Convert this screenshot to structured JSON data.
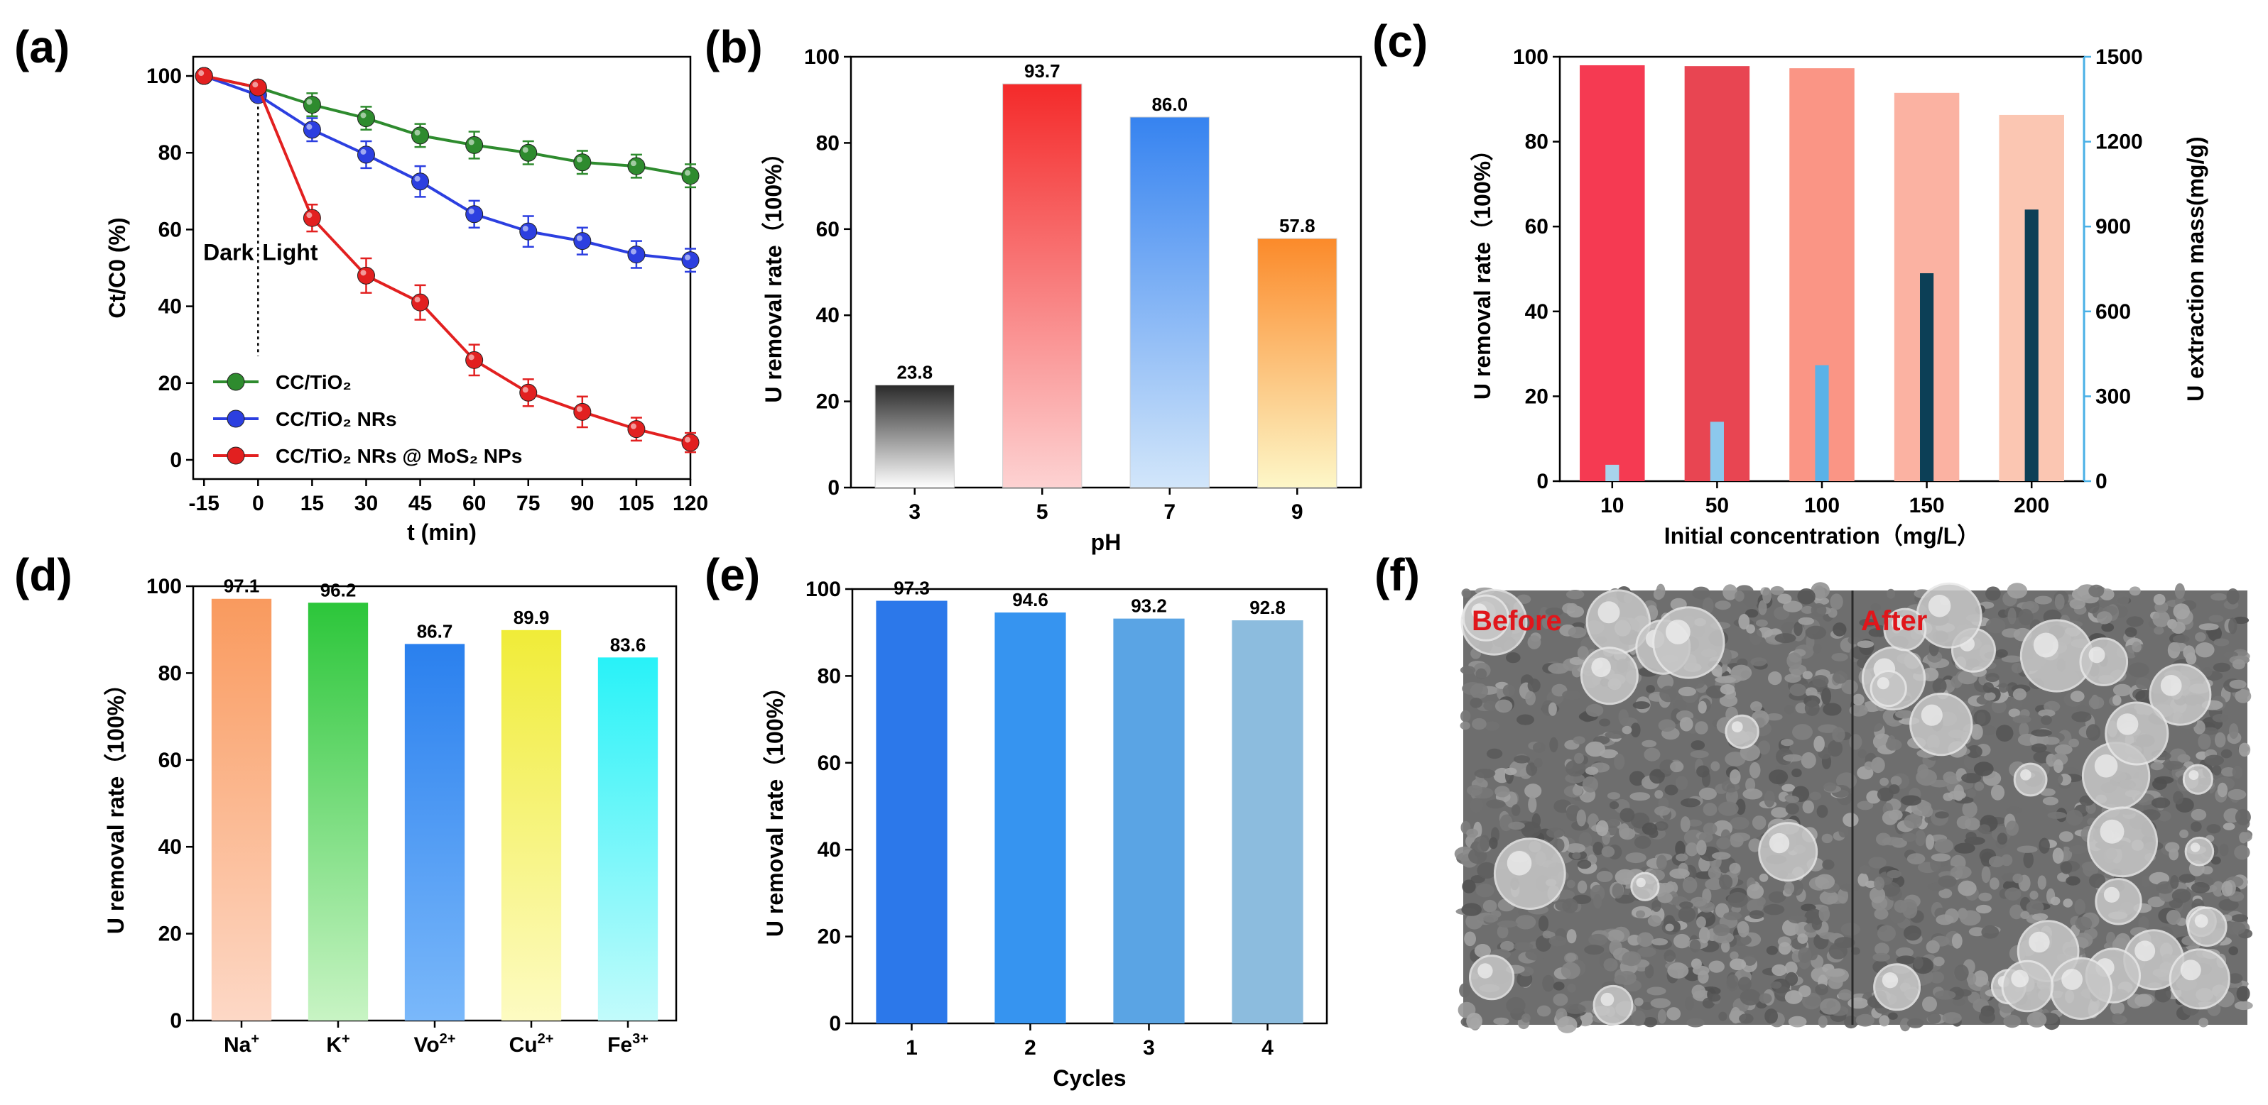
{
  "panel_labels": [
    "(a)",
    "(b)",
    "(c)",
    "(d)",
    "(e)",
    "(f)"
  ],
  "chart_data": [
    {
      "panel": "a",
      "type": "line",
      "xlabel": "t (min)",
      "ylabel": "Ct/C0 (%)",
      "x": [
        -15,
        0,
        15,
        30,
        45,
        60,
        75,
        90,
        105,
        120
      ],
      "xticks": [
        "-15",
        "0",
        "15",
        "30",
        "45",
        "60",
        "75",
        "90",
        "105",
        "120"
      ],
      "yticks": [
        "0",
        "20",
        "40",
        "60",
        "80",
        "100"
      ],
      "xlim": [
        -18,
        120
      ],
      "ylim": [
        -5,
        105
      ],
      "annotations": {
        "dark": "Dark",
        "light": "Light"
      },
      "legend_position": "bottom-left",
      "series": [
        {
          "name": "CC/TiO₂",
          "color": "#2e8b2e",
          "values": [
            100,
            97,
            92.5,
            89,
            84.5,
            82,
            80,
            77.5,
            76.5,
            74
          ],
          "errors": [
            0,
            1.5,
            3,
            3,
            3,
            3.5,
            3,
            3,
            3,
            3
          ]
        },
        {
          "name": "CC/TiO₂ NRs",
          "color": "#2c3fe0",
          "values": [
            100,
            95,
            86,
            79.5,
            72.5,
            64,
            59.5,
            57,
            53.5,
            52
          ],
          "errors": [
            0,
            1.5,
            3,
            3.5,
            4,
            3.5,
            4,
            3.5,
            3.5,
            3
          ]
        },
        {
          "name": "CC/TiO₂ NRs @ MoS₂ NPs",
          "color": "#e22020",
          "values": [
            100,
            97,
            63,
            48,
            41,
            26,
            17.5,
            12.5,
            8,
            4.5
          ],
          "errors": [
            0,
            1.5,
            3.5,
            4.5,
            4.5,
            4,
            3.5,
            4,
            3,
            2.5
          ]
        }
      ]
    },
    {
      "panel": "b",
      "type": "bar",
      "xlabel": "pH",
      "ylabel": "U removal rate（100%）",
      "categories": [
        "3",
        "5",
        "7",
        "9"
      ],
      "values": [
        23.8,
        93.7,
        86.0,
        57.8
      ],
      "value_labels": [
        "23.8",
        "93.7",
        "86.0",
        "57.8"
      ],
      "yticks": [
        "0",
        "20",
        "40",
        "60",
        "80",
        "100"
      ],
      "ylim": [
        0,
        100
      ],
      "gradients": [
        [
          "#2a2a2a",
          "#ffffff"
        ],
        [
          "#f42a2a",
          "#fdd2d2"
        ],
        [
          "#3683f0",
          "#d2e6fa"
        ],
        [
          "#fb8a2a",
          "#fdf7c8"
        ]
      ]
    },
    {
      "panel": "c",
      "type": "bar",
      "xlabel": "Initial concentration（mg/L）",
      "ylabel": "U removal rate（100%）",
      "ylabel_right": "U extraction mass(mg/g)",
      "categories": [
        "10",
        "50",
        "100",
        "150",
        "200"
      ],
      "series": [
        {
          "name": "U removal rate",
          "axis": "left",
          "values": [
            98.0,
            97.8,
            97.3,
            91.5,
            86.3
          ],
          "colors": [
            "#f53a52",
            "#e84552",
            "#fa9585",
            "#fbb2a2",
            "#fbc6b2"
          ]
        },
        {
          "name": "U extraction mass",
          "axis": "right",
          "values": [
            58,
            210,
            410,
            735,
            960
          ],
          "colors": [
            "#a8d4ec",
            "#8cc8ec",
            "#5ab2e8",
            "#0c3f56",
            "#0c3f56"
          ]
        }
      ],
      "yticks": [
        "0",
        "20",
        "40",
        "60",
        "80",
        "100"
      ],
      "yticks_right": [
        "0",
        "300",
        "600",
        "900",
        "1200",
        "1500"
      ],
      "ylim": [
        0,
        100
      ],
      "ylim_right": [
        0,
        1500
      ]
    },
    {
      "panel": "d",
      "type": "bar",
      "xlabel": "",
      "ylabel": "U removal rate（100%）",
      "categories": [
        "Na",
        "K",
        "Vo",
        "Cu",
        "Fe"
      ],
      "category_superscripts": [
        "+",
        "+",
        "2+",
        "2+",
        "3+"
      ],
      "values": [
        97.1,
        96.2,
        86.7,
        89.9,
        83.6
      ],
      "value_labels": [
        "97.1",
        "96.2",
        "86.7",
        "89.9",
        "83.6"
      ],
      "yticks": [
        "0",
        "20",
        "40",
        "60",
        "80",
        "100"
      ],
      "ylim": [
        0,
        100
      ],
      "gradients": [
        [
          "#f99a5e",
          "#fdd8c6"
        ],
        [
          "#2cc63a",
          "#c8f4c4"
        ],
        [
          "#2a80ee",
          "#7ab8fa"
        ],
        [
          "#f0ec38",
          "#fdfbc2"
        ],
        [
          "#28f2f8",
          "#c2fbfb"
        ]
      ]
    },
    {
      "panel": "e",
      "type": "bar",
      "xlabel": "Cycles",
      "ylabel": "U removal rate（100%）",
      "categories": [
        "1",
        "2",
        "3",
        "4"
      ],
      "values": [
        97.3,
        94.6,
        93.2,
        92.8
      ],
      "value_labels": [
        "97.3",
        "94.6",
        "93.2",
        "92.8"
      ],
      "yticks": [
        "0",
        "20",
        "40",
        "60",
        "80",
        "100"
      ],
      "ylim": [
        0,
        100
      ],
      "colors": [
        "#2c78ea",
        "#3694f0",
        "#5aa4e4",
        "#8cbcde"
      ]
    }
  ],
  "sem": {
    "panel": "f",
    "before_label": "Before",
    "after_label": "After"
  }
}
